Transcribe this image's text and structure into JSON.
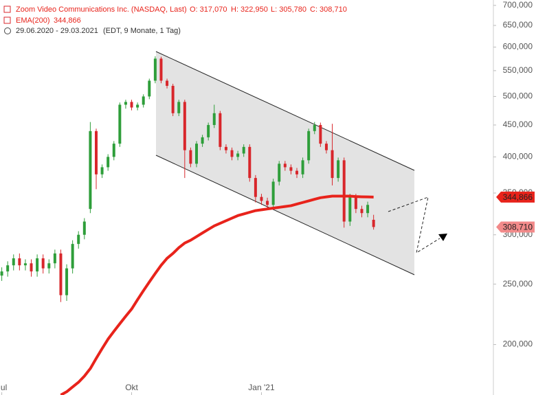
{
  "header": {
    "title": "Zoom Video Communications Inc. (NASDAQ, Last)",
    "ohlc": [
      "O: 317,070",
      "H: 322,950",
      "L: 305,780",
      "C: 308,710"
    ],
    "period": "29.06.2020 - 29.03.2021",
    "period_note": "(EDT, 9 Monate, 1 Tag)"
  },
  "chart_data": {
    "type": "candlestick",
    "log_scale": true,
    "xlim": [
      -0.3,
      83.3
    ],
    "ylim": [
      166,
      714
    ],
    "xticks": [
      {
        "value": 0,
        "label": "Jul"
      },
      {
        "value": 22,
        "label": "Okt"
      },
      {
        "value": 44,
        "label": "Jan '21"
      }
    ],
    "yticks": [
      {
        "value": 200,
        "label": "200,000"
      },
      {
        "value": 250,
        "label": "250,000"
      },
      {
        "value": 300,
        "label": "300,000"
      },
      {
        "value": 350,
        "label": "350,000"
      },
      {
        "value": 400,
        "label": "400,000"
      },
      {
        "value": 450,
        "label": "450,000"
      },
      {
        "value": 500,
        "label": "500,000"
      },
      {
        "value": 550,
        "label": "550,000"
      },
      {
        "value": 600,
        "label": "600,000"
      },
      {
        "value": 650,
        "label": "650,000"
      },
      {
        "value": 700,
        "label": "700,000"
      }
    ],
    "up_color": "#2e9e3a",
    "down_color": "#d8262b",
    "open": [
      258,
      262,
      268,
      275,
      268,
      270,
      262,
      275,
      265,
      270,
      280,
      240,
      265,
      290,
      300,
      330,
      440,
      375,
      385,
      400,
      420,
      485,
      490,
      480,
      485,
      500,
      530,
      575,
      530,
      520,
      470,
      490,
      410,
      390,
      420,
      430,
      450,
      470,
      415,
      410,
      400,
      405,
      415,
      370,
      345,
      340,
      335,
      365,
      390,
      385,
      380,
      375,
      395,
      440,
      450,
      420,
      410,
      370,
      395,
      315,
      345,
      330,
      325,
      317.07
    ],
    "high": [
      266,
      272,
      279,
      280,
      274,
      274,
      279,
      279,
      274,
      284,
      284,
      269,
      294,
      304,
      319,
      455,
      444,
      389,
      404,
      424,
      489,
      494,
      494,
      489,
      504,
      534,
      580,
      579,
      534,
      524,
      494,
      494,
      414,
      424,
      434,
      454,
      485,
      474,
      419,
      414,
      409,
      419,
      419,
      374,
      349,
      344,
      369,
      394,
      394,
      389,
      384,
      399,
      444,
      455,
      454,
      424,
      452,
      399,
      399,
      349,
      349,
      334,
      339,
      322.95
    ],
    "low": [
      253,
      257,
      263,
      263,
      263,
      257,
      257,
      260,
      260,
      265,
      234,
      235,
      260,
      285,
      295,
      325,
      355,
      370,
      380,
      395,
      415,
      478,
      475,
      475,
      480,
      495,
      525,
      525,
      515,
      465,
      465,
      370,
      385,
      385,
      415,
      425,
      445,
      410,
      405,
      395,
      395,
      400,
      365,
      338,
      335,
      330,
      330,
      360,
      380,
      375,
      370,
      370,
      390,
      435,
      415,
      405,
      360,
      365,
      308,
      310,
      325,
      320,
      320,
      305.78
    ],
    "close": [
      262,
      268,
      275,
      268,
      270,
      262,
      275,
      265,
      270,
      280,
      240,
      265,
      290,
      300,
      315,
      440,
      375,
      385,
      400,
      420,
      485,
      490,
      480,
      485,
      500,
      530,
      575,
      530,
      520,
      470,
      490,
      410,
      390,
      420,
      430,
      450,
      470,
      415,
      410,
      400,
      405,
      415,
      370,
      345,
      340,
      335,
      365,
      390,
      385,
      380,
      375,
      395,
      440,
      450,
      420,
      410,
      370,
      395,
      315,
      345,
      330,
      325,
      335,
      308.71
    ],
    "last_close_label": "308,710",
    "series": [
      {
        "name": "EMA(200)",
        "color": "#e8231b",
        "last_value_label": "344,866",
        "values": [
          null,
          null,
          null,
          null,
          null,
          null,
          null,
          null,
          null,
          null,
          166,
          168,
          171,
          174,
          178,
          183,
          190,
          197,
          204,
          210,
          216,
          222,
          228,
          236,
          244,
          252,
          260,
          268,
          275,
          280,
          286,
          291,
          294,
          298,
          302,
          306,
          310,
          313,
          316,
          319,
          322,
          324,
          326,
          328,
          329,
          330,
          331,
          332,
          333,
          334,
          336,
          338,
          340,
          342,
          344,
          345,
          346,
          346,
          346,
          346,
          345.5,
          345.2,
          345,
          344.866
        ]
      }
    ]
  }
}
